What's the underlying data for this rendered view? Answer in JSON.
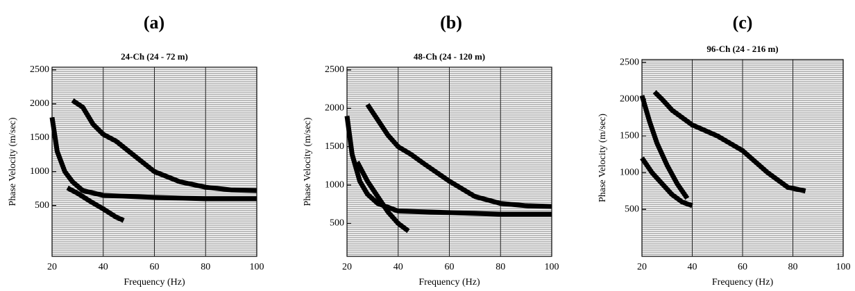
{
  "chart_data": [
    {
      "type": "line",
      "panel_label": "(a)",
      "title": "24-Ch (24 - 72 m)",
      "xlabel": "Frequency (Hz)",
      "ylabel": "Phase Velocity (m/sec)",
      "xlim": [
        20,
        100
      ],
      "xticks": [
        20,
        40,
        60,
        80,
        100
      ],
      "ylim": [
        -250,
        2540
      ],
      "yticks": [
        500,
        1000,
        1500,
        2000,
        2500
      ],
      "grid": true,
      "series": [
        {
          "color": "#000000",
          "x": [
            20,
            22,
            25,
            28,
            32,
            40,
            60,
            80,
            100
          ],
          "values": [
            1800,
            1300,
            1000,
            850,
            720,
            650,
            620,
            600,
            600
          ]
        },
        {
          "color": "#000000",
          "x": [
            28,
            32,
            36,
            40,
            45,
            50,
            60,
            70,
            80,
            90,
            100
          ],
          "values": [
            2050,
            1950,
            1700,
            1550,
            1450,
            1300,
            1000,
            850,
            770,
            730,
            720
          ]
        },
        {
          "color": "#000000",
          "x": [
            26,
            30,
            35,
            40,
            45,
            48
          ],
          "values": [
            760,
            680,
            560,
            450,
            330,
            280
          ]
        }
      ]
    },
    {
      "type": "line",
      "panel_label": "(b)",
      "title": "48-Ch (24 - 120 m)",
      "xlabel": "Frequency (Hz)",
      "ylabel": "Phase Velocity (m/sec)",
      "xlim": [
        20,
        100
      ],
      "xticks": [
        20,
        40,
        60,
        80,
        100
      ],
      "ylim": [
        70,
        2536
      ],
      "yticks": [
        500,
        1000,
        1500,
        2000,
        2500
      ],
      "grid": true,
      "series": [
        {
          "color": "#000000",
          "x": [
            20,
            22,
            25,
            28,
            32,
            40,
            60,
            80,
            100
          ],
          "values": [
            1900,
            1400,
            1050,
            880,
            760,
            660,
            640,
            620,
            620
          ]
        },
        {
          "color": "#000000",
          "x": [
            28,
            32,
            36,
            40,
            45,
            50,
            60,
            70,
            80,
            90,
            100
          ],
          "values": [
            2050,
            1850,
            1650,
            1500,
            1400,
            1280,
            1050,
            850,
            760,
            730,
            720
          ]
        },
        {
          "color": "#000000",
          "x": [
            24,
            28,
            32,
            36,
            40,
            44
          ],
          "values": [
            1300,
            1050,
            850,
            650,
            500,
            400
          ]
        }
      ]
    },
    {
      "type": "line",
      "panel_label": "(c)",
      "title": "96-Ch (24 - 216 m)",
      "xlabel": "Frequency (Hz)",
      "ylabel": "Phase Velocity (m/sec)",
      "xlim": [
        20,
        100
      ],
      "xticks": [
        20,
        40,
        60,
        80,
        100
      ],
      "ylim": [
        -140,
        2540
      ],
      "yticks": [
        500,
        1000,
        1500,
        2000,
        2500
      ],
      "grid": true,
      "series": [
        {
          "color": "#000000",
          "x": [
            20,
            23,
            26,
            30,
            34,
            38
          ],
          "values": [
            2050,
            1700,
            1400,
            1100,
            850,
            650
          ]
        },
        {
          "color": "#000000",
          "x": [
            25,
            28,
            32,
            40,
            50,
            60,
            70,
            78,
            85
          ],
          "values": [
            2100,
            2000,
            1850,
            1650,
            1500,
            1300,
            1000,
            800,
            750
          ]
        },
        {
          "color": "#000000",
          "x": [
            20,
            24,
            28,
            32,
            36,
            40
          ],
          "values": [
            1200,
            1000,
            850,
            700,
            600,
            550
          ]
        }
      ]
    }
  ]
}
